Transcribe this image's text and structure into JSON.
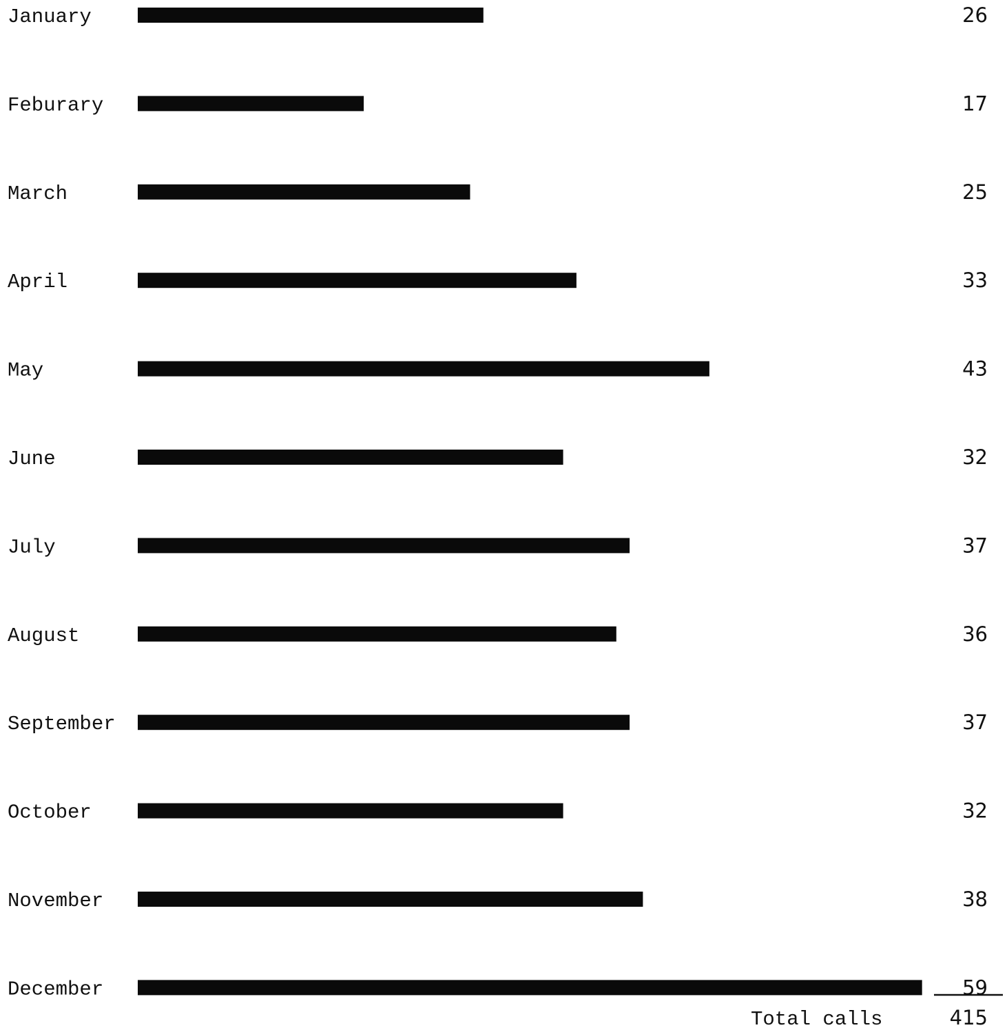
{
  "chart_data": {
    "type": "bar",
    "orientation": "horizontal",
    "categories": [
      "January",
      "Feburary",
      "March",
      "April",
      "May",
      "June",
      "July",
      "August",
      "September",
      "October",
      "November",
      "December"
    ],
    "values": [
      26,
      17,
      25,
      33,
      43,
      32,
      37,
      36,
      37,
      32,
      38,
      59
    ],
    "value_labels": [
      "26",
      "17",
      "25",
      "33",
      "43",
      "32",
      "37",
      "36",
      "37",
      "32",
      "38",
      "59"
    ],
    "total_label": "Total calls",
    "total_value": "415",
    "grid": false,
    "legend": "none",
    "bar_color": "#0a0a0a"
  }
}
